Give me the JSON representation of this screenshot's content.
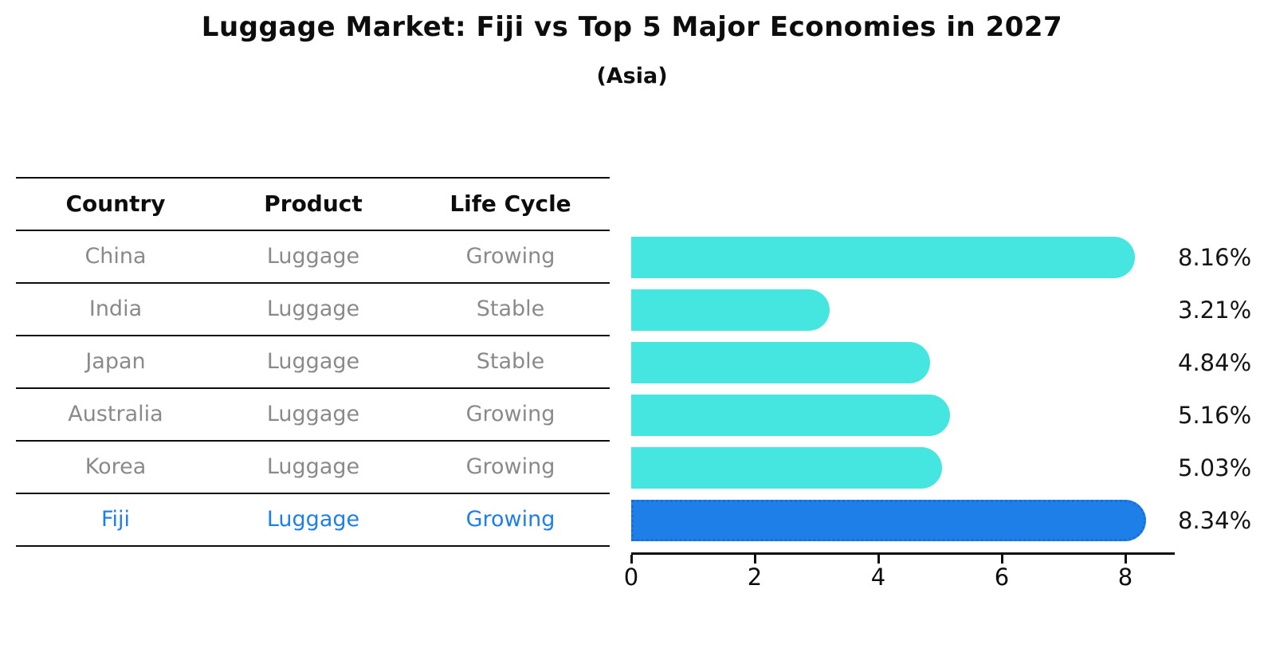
{
  "title": "Luggage Market: Fiji vs Top 5 Major Economies in 2027",
  "subtitle": "(Asia)",
  "table": {
    "columns": [
      "Country",
      "Product",
      "Life Cycle"
    ],
    "rows": [
      {
        "country": "China",
        "product": "Luggage",
        "life_cycle": "Growing",
        "highlight": false
      },
      {
        "country": "India",
        "product": "Luggage",
        "life_cycle": "Stable",
        "highlight": false
      },
      {
        "country": "Japan",
        "product": "Luggage",
        "life_cycle": "Stable",
        "highlight": false
      },
      {
        "country": "Australia",
        "product": "Luggage",
        "life_cycle": "Growing",
        "highlight": false
      },
      {
        "country": "Korea",
        "product": "Luggage",
        "life_cycle": "Growing",
        "highlight": false
      },
      {
        "country": "Fiji",
        "product": "Luggage",
        "life_cycle": "Growing",
        "highlight": true
      }
    ]
  },
  "chart_data": {
    "type": "bar",
    "orientation": "horizontal",
    "title": "Luggage Market: Fiji vs Top 5 Major Economies in 2027",
    "subtitle": "(Asia)",
    "categories": [
      "China",
      "India",
      "Japan",
      "Australia",
      "Korea",
      "Fiji"
    ],
    "values": [
      8.16,
      3.21,
      4.84,
      5.16,
      5.03,
      8.34
    ],
    "value_labels": [
      "8.16%",
      "3.21%",
      "4.84%",
      "5.16%",
      "5.03%",
      "8.34%"
    ],
    "highlight_index": 5,
    "xlim": [
      0,
      8.8
    ],
    "xticks": [
      0,
      2,
      4,
      6,
      8
    ],
    "grid": false,
    "legend": null,
    "colors": {
      "bar": "#45E6E0",
      "highlight": "#1E7FE8",
      "highlight_edge": "#1A6FD6",
      "text_muted": "#8A8A8A",
      "text_dark": "#111111"
    }
  }
}
